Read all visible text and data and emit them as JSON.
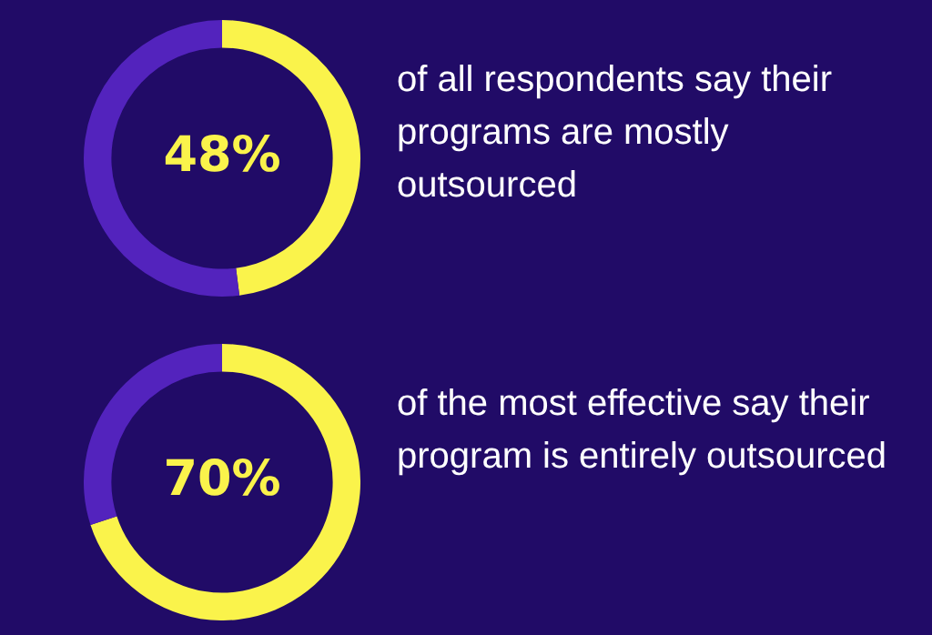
{
  "chart_data": [
    {
      "type": "donut",
      "categories": [
        null,
        null
      ],
      "values": [
        48,
        52
      ],
      "colors": [
        "#faf34b",
        "#5323bd"
      ],
      "value_labels": [
        "48%",
        null
      ],
      "annotations": [
        "of all respondents say their programs are mostly outsourced"
      ]
    },
    {
      "type": "donut",
      "categories": [
        null,
        null
      ],
      "values": [
        70,
        30
      ],
      "colors": [
        "#faf34b",
        "#5323bd"
      ],
      "value_labels": [
        "70%",
        null
      ],
      "annotations": [
        "of the most effective say their program is entirely outsourced"
      ]
    }
  ]
}
